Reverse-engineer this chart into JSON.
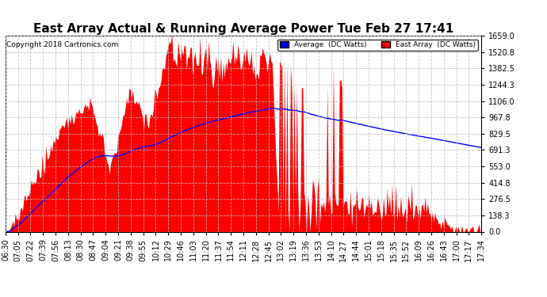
{
  "title": "East Array Actual & Running Average Power Tue Feb 27 17:41",
  "copyright": "Copyright 2018 Cartronics.com",
  "ylabel_right_ticks": [
    0.0,
    138.3,
    276.5,
    414.8,
    553.0,
    691.3,
    829.5,
    967.8,
    1106.0,
    1244.3,
    1382.5,
    1520.8,
    1659.0
  ],
  "ymax": 1659.0,
  "ymin": 0.0,
  "legend_labels": [
    "Average  (DC Watts)",
    "East Array  (DC Watts)"
  ],
  "legend_colors": [
    "#0000ff",
    "#ff0000"
  ],
  "bg_color": "#ffffff",
  "grid_color": "#bbbbbb",
  "area_color": "#ff0000",
  "line_color": "#0000ff",
  "title_fontsize": 11,
  "tick_fontsize": 7,
  "xtick_labels": [
    "06:30",
    "07:05",
    "07:22",
    "07:39",
    "07:56",
    "08:13",
    "08:30",
    "08:47",
    "09:04",
    "09:21",
    "09:38",
    "09:55",
    "10:12",
    "10:29",
    "10:46",
    "11:03",
    "11:20",
    "11:37",
    "11:54",
    "12:11",
    "12:28",
    "12:45",
    "13:02",
    "13:19",
    "13:36",
    "13:53",
    "14:10",
    "14:27",
    "14:44",
    "15:01",
    "15:18",
    "15:35",
    "15:52",
    "16:09",
    "16:26",
    "16:43",
    "17:00",
    "17:17",
    "17:34"
  ],
  "num_points": 390,
  "figsize": [
    6.9,
    3.75
  ],
  "dpi": 100
}
